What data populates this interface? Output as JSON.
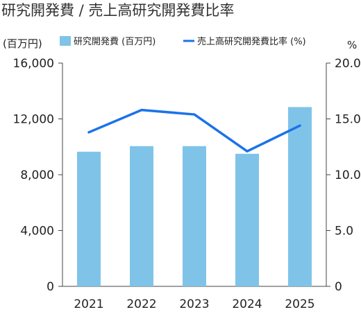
{
  "chart_data": {
    "type": "bar",
    "title": "研究開発費 / 売上高研究開発費比率",
    "left_unit": "(百万円)",
    "right_unit": "%",
    "categories": [
      "2021",
      "2022",
      "2023",
      "2024",
      "2025"
    ],
    "series": [
      {
        "name": "研究開発費 (百万円)",
        "type": "bar",
        "axis": "left",
        "color": "#7fc4e8",
        "values": [
          9650,
          10050,
          10050,
          9500,
          12850
        ]
      },
      {
        "name": "売上高研究開発費比率 (%)",
        "type": "line",
        "axis": "right",
        "color": "#1a73e8",
        "values": [
          13.8,
          15.8,
          15.4,
          12.1,
          14.4
        ]
      }
    ],
    "ylim_left": [
      0,
      16000
    ],
    "ylim_right": [
      0,
      20
    ],
    "left_ticks": [
      "0",
      "4,000",
      "8,000",
      "12,000",
      "16,000"
    ],
    "right_ticks": [
      "0",
      "5.0",
      "10.0",
      "15.0",
      "20.0"
    ],
    "grid": false,
    "legend_position": "top"
  }
}
